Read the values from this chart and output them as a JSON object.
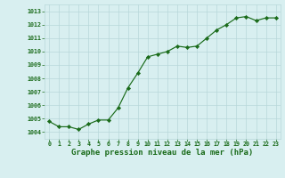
{
  "x": [
    0,
    1,
    2,
    3,
    4,
    5,
    6,
    7,
    8,
    9,
    10,
    11,
    12,
    13,
    14,
    15,
    16,
    17,
    18,
    19,
    20,
    21,
    22,
    23
  ],
  "y": [
    1004.8,
    1004.4,
    1004.4,
    1004.2,
    1004.6,
    1004.9,
    1004.9,
    1005.8,
    1007.3,
    1008.4,
    1009.6,
    1009.8,
    1010.0,
    1010.4,
    1010.3,
    1010.4,
    1011.0,
    1011.6,
    1012.0,
    1012.5,
    1012.6,
    1012.3,
    1012.5,
    1012.5
  ],
  "line_color": "#1a6b1a",
  "marker_color": "#1a6b1a",
  "bg_color": "#d8eff0",
  "grid_color": "#b8d8da",
  "label_color": "#1a6b1a",
  "xlabel": "Graphe pression niveau de la mer (hPa)",
  "ylim_min": 1003.5,
  "ylim_max": 1013.5,
  "xlim_min": -0.5,
  "xlim_max": 23.5,
  "yticks": [
    1004,
    1005,
    1006,
    1007,
    1008,
    1009,
    1010,
    1011,
    1012,
    1013
  ],
  "xticks": [
    0,
    1,
    2,
    3,
    4,
    5,
    6,
    7,
    8,
    9,
    10,
    11,
    12,
    13,
    14,
    15,
    16,
    17,
    18,
    19,
    20,
    21,
    22,
    23
  ],
  "tick_fontsize": 4.8,
  "xlabel_fontsize": 6.5,
  "marker_size": 2.2,
  "linewidth": 0.85
}
